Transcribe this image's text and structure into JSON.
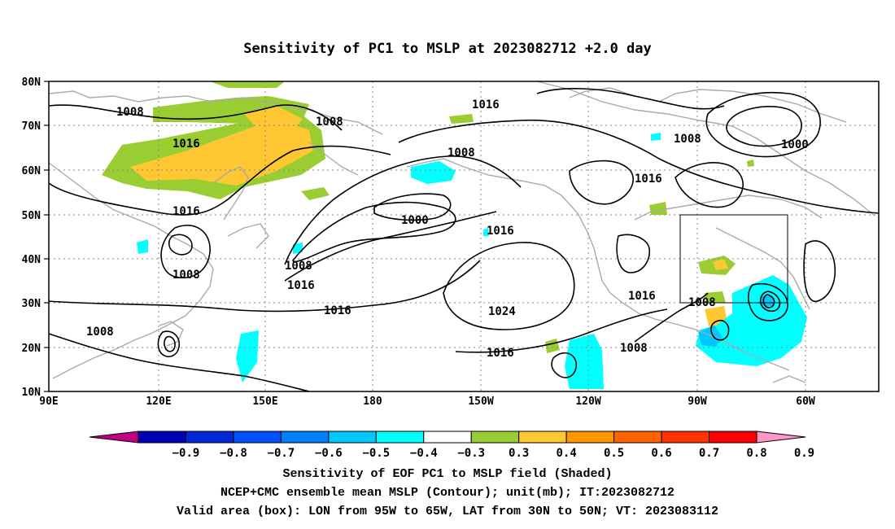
{
  "title": "Sensitivity of PC1 to MSLP at 2023082712 +2.0 day",
  "lat_labels": [
    "80N",
    "70N",
    "60N",
    "50N",
    "40N",
    "30N",
    "20N",
    "10N"
  ],
  "lon_labels": [
    "90E",
    "120E",
    "150E",
    "180",
    "150W",
    "120W",
    "90W",
    "60W"
  ],
  "contour_labels": {
    "c1": "1008",
    "c2": "1008",
    "c3": "1016",
    "c4": "1016",
    "c5": "1008",
    "c6": "1000",
    "c7": "1016",
    "c8": "1016",
    "c9": "1008",
    "c10": "1016",
    "c11": "1016",
    "c12": "1008",
    "c13": "1024",
    "c14": "1016",
    "c15": "1008",
    "c16": "1016",
    "c17": "1008",
    "c18": "1016",
    "c19": "1000",
    "c20": "1008",
    "c21": "1008"
  },
  "colorbar": {
    "labels": [
      "−0.9",
      "−0.8",
      "−0.7",
      "−0.6",
      "−0.5",
      "−0.4",
      "−0.3",
      "0.3",
      "0.4",
      "0.5",
      "0.6",
      "0.7",
      "0.8",
      "0.9"
    ],
    "colors": [
      "#c00080",
      "#0000b4",
      "#0028d8",
      "#0050ff",
      "#0080ff",
      "#00c8ff",
      "#00ffff",
      "#ffffff",
      "#9acd32",
      "#ffc832",
      "#ff9600",
      "#ff6400",
      "#ff3200",
      "#ff0000",
      "#ff96c8"
    ]
  },
  "captions": {
    "line1": "Sensitivity of EOF PC1 to MSLP field (Shaded)",
    "line2": "NCEP+CMC ensemble mean MSLP (Contour); unit(mb); IT:2023082712",
    "line3": "Valid area (box): LON from 95W to 65W, LAT from 30N to 50N; VT: 2023083112"
  }
}
